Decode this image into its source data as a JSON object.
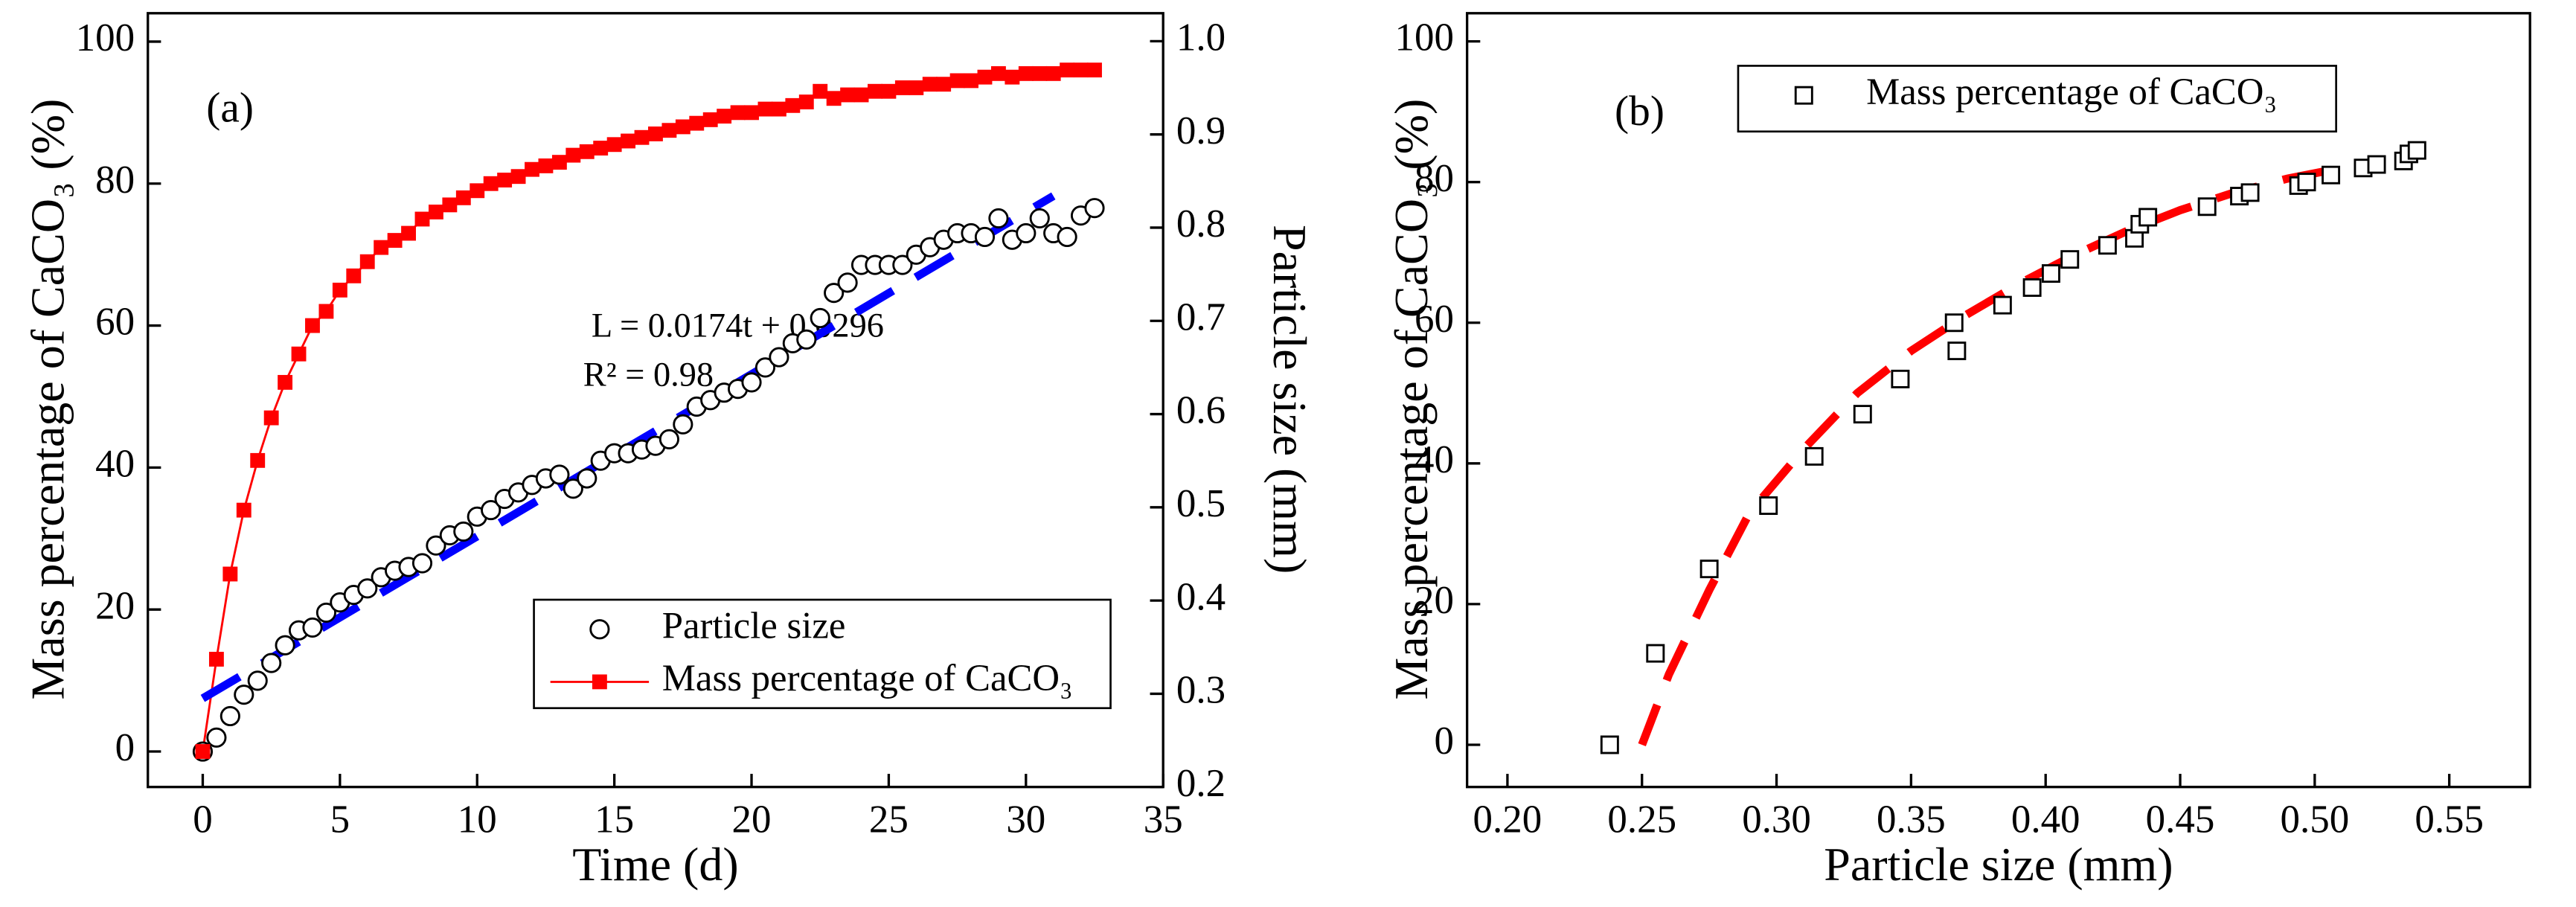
{
  "chart_data": [
    {
      "type": "line",
      "panel_label": "(a)",
      "xlabel": "Time (d)",
      "ylabel": "Mass percentage of CaCO₃ (%)",
      "y2label": "Particle size (mm)",
      "annotations": [
        "L = 0.0174t + 0.0296",
        "R² = 0.98"
      ],
      "xlim": [
        -2,
        35
      ],
      "xticks": [
        0,
        5,
        10,
        15,
        20,
        25,
        30,
        35
      ],
      "ylim": [
        -5,
        104
      ],
      "yticks": [
        0,
        20,
        40,
        60,
        80,
        100
      ],
      "y2lim": [
        0.2,
        1.03
      ],
      "y2ticks": [
        {
          "value": 0.2,
          "label": "0.2"
        },
        {
          "value": 0.3,
          "label": "0.3"
        },
        {
          "value": 0.4,
          "label": "0.4"
        },
        {
          "value": 0.5,
          "label": "0.5"
        },
        {
          "value": 0.6,
          "label": "0.6"
        },
        {
          "value": 0.7,
          "label": "0.7"
        },
        {
          "value": 0.8,
          "label": "0.8"
        },
        {
          "value": 0.9,
          "label": "0.9"
        },
        {
          "value": 1.0,
          "label": "1.0"
        }
      ],
      "series": [
        {
          "name": "Particle size",
          "color": "#000000",
          "marker": "circle",
          "line": "none",
          "axis": "y2",
          "x": [
            0,
            0.5,
            1,
            1.5,
            2,
            2.5,
            3,
            3.5,
            4,
            4.5,
            5,
            5.5,
            6,
            6.5,
            7,
            7.5,
            8,
            8.5,
            9,
            9.5,
            10,
            10.5,
            11,
            11.5,
            12,
            12.5,
            13,
            13.5,
            14,
            14.5,
            15,
            15.5,
            16,
            16.5,
            17,
            17.5,
            18,
            18.5,
            19,
            19.5,
            20,
            20.5,
            21,
            21.5,
            22,
            22.5,
            23,
            23.5,
            24,
            24.5,
            25,
            25.5,
            26,
            26.5,
            27,
            27.5,
            28,
            28.5,
            29,
            29.5,
            30,
            30.5,
            31,
            31.5,
            32,
            32.5
          ],
          "values": [
            0.238,
            0.253,
            0.276,
            0.299,
            0.314,
            0.333,
            0.352,
            0.368,
            0.371,
            0.387,
            0.398,
            0.406,
            0.413,
            0.425,
            0.432,
            0.436,
            0.44,
            0.459,
            0.47,
            0.474,
            0.49,
            0.497,
            0.509,
            0.516,
            0.524,
            0.531,
            0.535,
            0.52,
            0.531,
            0.55,
            0.558,
            0.558,
            0.562,
            0.566,
            0.573,
            0.589,
            0.608,
            0.615,
            0.623,
            0.627,
            0.634,
            0.65,
            0.661,
            0.676,
            0.68,
            0.703,
            0.73,
            0.741,
            0.76,
            0.76,
            0.76,
            0.76,
            0.771,
            0.779,
            0.787,
            0.794,
            0.794,
            0.79,
            0.81,
            0.787,
            0.794,
            0.81,
            0.794,
            0.79,
            0.813,
            0.821
          ]
        },
        {
          "name": "Mass percentage of CaCO₃",
          "color": "#ff0000",
          "marker": "square-filled",
          "line": "solid",
          "x": [
            0,
            0.5,
            1,
            1.5,
            2,
            2.5,
            3,
            3.5,
            4,
            4.5,
            5,
            5.5,
            6,
            6.5,
            7,
            7.5,
            8,
            8.5,
            9,
            9.5,
            10,
            10.5,
            11,
            11.5,
            12,
            12.5,
            13,
            13.5,
            14,
            14.5,
            15,
            15.5,
            16,
            16.5,
            17,
            17.5,
            18,
            18.5,
            19,
            19.5,
            20,
            20.5,
            21,
            21.5,
            22,
            22.5,
            23,
            23.5,
            24,
            24.5,
            25,
            25.5,
            26,
            26.5,
            27,
            27.5,
            28,
            28.5,
            29,
            29.5,
            30,
            30.5,
            31,
            31.5,
            32,
            32.5
          ],
          "values": [
            0,
            13,
            25,
            34,
            41,
            47,
            52,
            56,
            60,
            62,
            65,
            67,
            69,
            71,
            72,
            73,
            75,
            76,
            77,
            78,
            79,
            80,
            80.5,
            81,
            82,
            82.5,
            83,
            84,
            84.5,
            85,
            85.5,
            86,
            86.5,
            87,
            87.5,
            88,
            88.5,
            89,
            89.5,
            90,
            90,
            90.5,
            90.5,
            91,
            91.5,
            93,
            92,
            92.5,
            92.5,
            93,
            93,
            93.5,
            93.5,
            94,
            94,
            94.5,
            94.5,
            95,
            95.5,
            95,
            95.5,
            95.5,
            95.5,
            96,
            96,
            96
          ]
        },
        {
          "color": "#0000ff",
          "marker": "none",
          "line": "dashed",
          "axis": "y2",
          "x": [
            0,
            31
          ],
          "values": [
            0.295,
            0.834
          ]
        }
      ]
    },
    {
      "type": "scatter",
      "panel_label": "(b)",
      "xlabel": "Particle size (mm)",
      "ylabel": "Mass percentage of CaCO₃ (%)",
      "annotations": [],
      "xlim": [
        0.185,
        0.58
      ],
      "xticks": [
        {
          "value": 0.2,
          "label": "0.20"
        },
        {
          "value": 0.25,
          "label": "0.25"
        },
        {
          "value": 0.3,
          "label": "0.30"
        },
        {
          "value": 0.35,
          "label": "0.35"
        },
        {
          "value": 0.4,
          "label": "0.40"
        },
        {
          "value": 0.45,
          "label": "0.45"
        },
        {
          "value": 0.5,
          "label": "0.50"
        },
        {
          "value": 0.55,
          "label": "0.55"
        }
      ],
      "ylim": [
        -6,
        104
      ],
      "yticks": [
        0,
        20,
        40,
        60,
        80,
        100
      ],
      "series": [
        {
          "name": "Mass percentage of CaCO₃",
          "color": "#000000",
          "marker": "square",
          "line": "none",
          "x": [
            0.238,
            0.255,
            0.275,
            0.297,
            0.314,
            0.332,
            0.346,
            0.366,
            0.367,
            0.384,
            0.395,
            0.402,
            0.409,
            0.423,
            0.433,
            0.435,
            0.438,
            0.46,
            0.472,
            0.476,
            0.494,
            0.497,
            0.506,
            0.518,
            0.523,
            0.533,
            0.535,
            0.538
          ],
          "values": [
            0,
            13,
            25,
            34,
            41,
            47,
            52,
            60,
            56,
            62.5,
            65,
            67,
            69,
            71,
            72,
            74,
            75,
            76.5,
            78,
            78.5,
            79.5,
            80,
            81,
            82,
            82.5,
            83,
            84,
            84.5
          ]
        },
        {
          "color": "#ff0000",
          "marker": "none",
          "line": "dashed",
          "x": [
            0.25,
            0.26,
            0.275,
            0.29,
            0.31,
            0.33,
            0.35,
            0.37,
            0.39,
            0.41,
            0.43,
            0.45,
            0.47,
            0.49,
            0.51
          ],
          "values": [
            0,
            10,
            22,
            33,
            42,
            50,
            56,
            61,
            65.5,
            69.5,
            73,
            76,
            78.5,
            80.5,
            82
          ]
        }
      ]
    }
  ]
}
